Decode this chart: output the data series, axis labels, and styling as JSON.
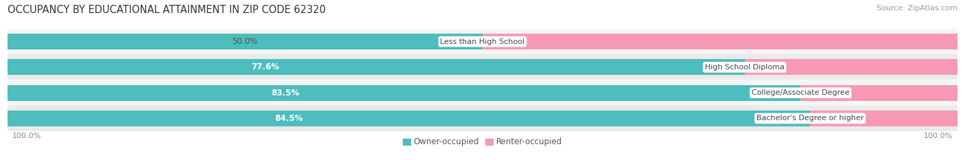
{
  "title": "OCCUPANCY BY EDUCATIONAL ATTAINMENT IN ZIP CODE 62320",
  "source": "Source: ZipAtlas.com",
  "categories": [
    "Less than High School",
    "High School Diploma",
    "College/Associate Degree",
    "Bachelor's Degree or higher"
  ],
  "owner_pct": [
    50.0,
    77.6,
    83.5,
    84.5
  ],
  "renter_pct": [
    50.0,
    22.4,
    16.5,
    15.5
  ],
  "owner_color": "#4dbdbd",
  "renter_color": "#f799b4",
  "row_bg_even": "#f5f5f5",
  "row_bg_odd": "#eaeaea",
  "label_bg_color": "#ffffff",
  "title_fontsize": 10.5,
  "source_fontsize": 8,
  "bar_label_fontsize": 8.5,
  "category_fontsize": 8,
  "legend_fontsize": 8.5,
  "axis_label_fontsize": 8,
  "background_color": "#ffffff",
  "bar_height": 0.62
}
